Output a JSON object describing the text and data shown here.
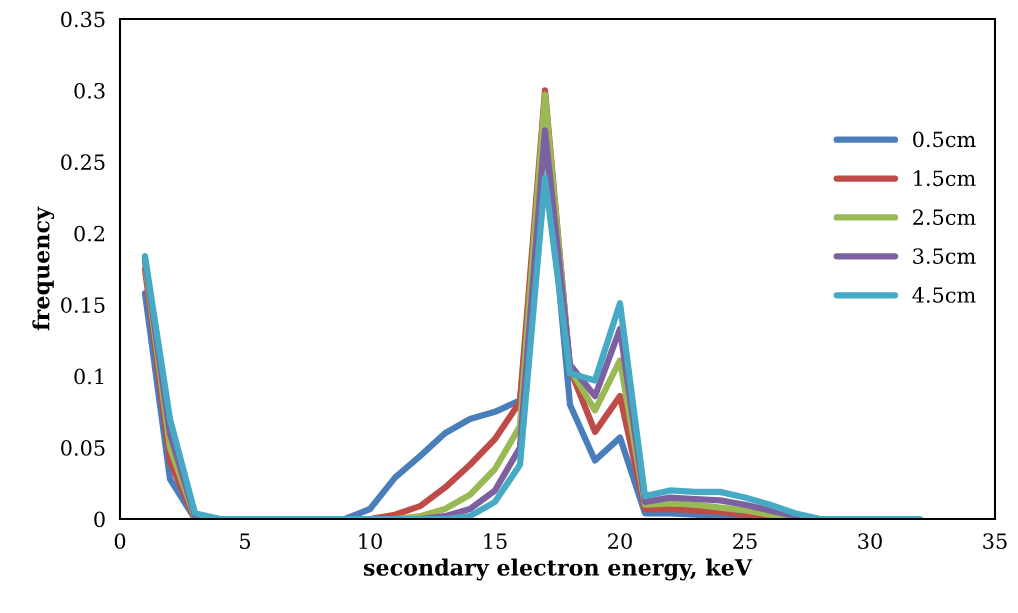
{
  "chart_data": {
    "type": "line",
    "xlabel": "secondary electron energy, keV",
    "ylabel": "frequency",
    "x": [
      1,
      2,
      3,
      4,
      5,
      6,
      7,
      8,
      9,
      10,
      11,
      12,
      13,
      14,
      15,
      16,
      17,
      18,
      19,
      20,
      21,
      22,
      23,
      24,
      25,
      26,
      27,
      28,
      29,
      30,
      31,
      32
    ],
    "series": [
      {
        "name": "0.5cm",
        "color": "#4a7ebb",
        "values": [
          0.158,
          0.028,
          0,
          0,
          0,
          0,
          0,
          0,
          0,
          0.007,
          0.029,
          0.044,
          0.06,
          0.07,
          0.075,
          0.083,
          0.27,
          0.08,
          0.041,
          0.057,
          0.004,
          0.004,
          0.003,
          0.002,
          0.001,
          0,
          0,
          0,
          null,
          null,
          null,
          null
        ]
      },
      {
        "name": "1.5cm",
        "color": "#be4b48",
        "values": [
          0.175,
          0.04,
          0,
          0,
          0,
          0,
          0,
          0,
          0,
          0,
          0.003,
          0.009,
          0.022,
          0.038,
          0.056,
          0.082,
          0.3,
          0.105,
          0.061,
          0.086,
          0.007,
          0.007,
          0.006,
          0.005,
          0.003,
          0.001,
          0,
          null,
          null,
          null,
          null,
          null
        ]
      },
      {
        "name": "2.5cm",
        "color": "#98b954",
        "values": [
          0.18,
          0.05,
          0.001,
          0,
          0,
          0,
          0,
          0,
          0,
          0,
          0,
          0.002,
          0.007,
          0.017,
          0.035,
          0.065,
          0.297,
          0.105,
          0.076,
          0.111,
          0.01,
          0.011,
          0.01,
          0.008,
          0.006,
          0.003,
          0.001,
          0,
          null,
          null,
          null,
          null
        ]
      },
      {
        "name": "3.5cm",
        "color": "#7d60a0",
        "values": [
          0.182,
          0.06,
          0.002,
          0,
          0,
          0,
          0,
          0,
          0,
          0,
          0,
          0,
          0.002,
          0.007,
          0.02,
          0.05,
          0.272,
          0.108,
          0.086,
          0.133,
          0.012,
          0.015,
          0.014,
          0.013,
          0.01,
          0.006,
          0.002,
          0,
          null,
          null,
          null,
          null
        ]
      },
      {
        "name": "4.5cm",
        "color": "#46aac5",
        "values": [
          0.184,
          0.07,
          0.004,
          0,
          0,
          0,
          0,
          0,
          0,
          0,
          0,
          0,
          0,
          0.002,
          0.012,
          0.038,
          0.239,
          0.102,
          0.097,
          0.151,
          0.016,
          0.02,
          0.019,
          0.019,
          0.015,
          0.01,
          0.004,
          0,
          0,
          0,
          0,
          0
        ]
      }
    ],
    "xlim": [
      0,
      35
    ],
    "xticks": [
      0,
      5,
      10,
      15,
      20,
      25,
      30,
      35
    ],
    "ylim": [
      0,
      0.35
    ],
    "yticks": [
      0,
      0.05,
      0.1,
      0.15,
      0.2,
      0.25,
      0.3,
      0.35
    ],
    "grid": false,
    "legend": "right",
    "marker": "none",
    "line_style": "solid"
  }
}
